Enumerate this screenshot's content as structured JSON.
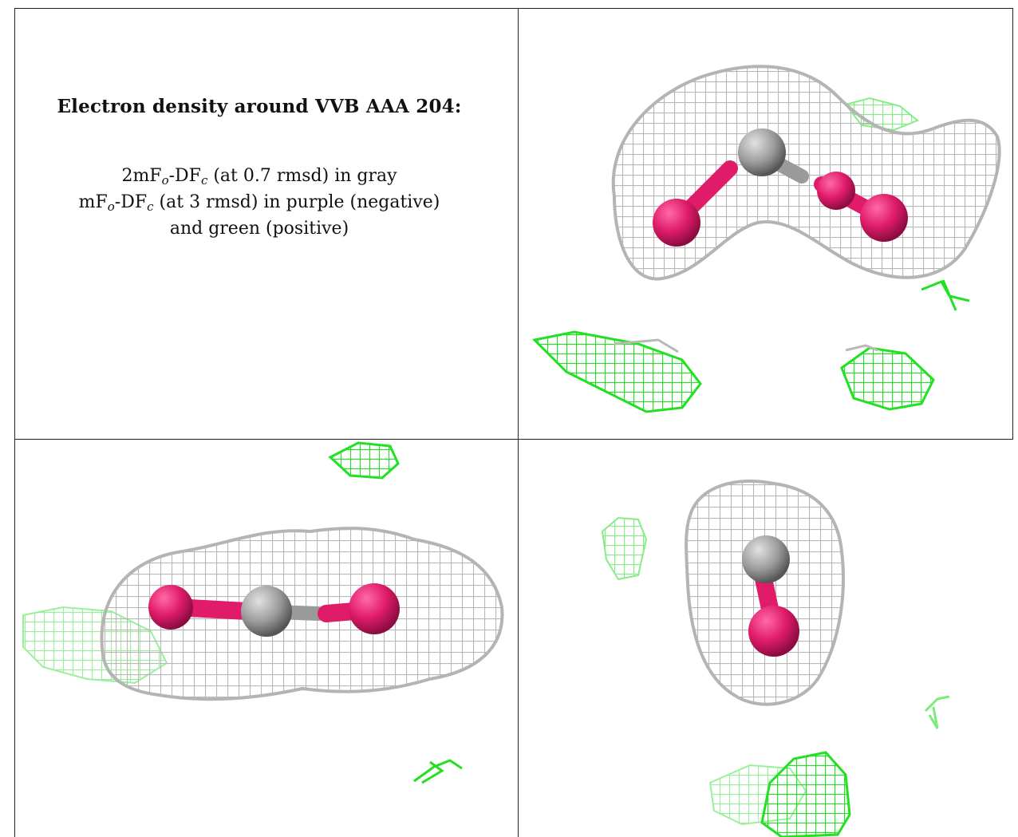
{
  "caption": {
    "title": "Electron density around VVB AAA 204:",
    "line1_pre": "2mF",
    "line1_sub1": "o",
    "line1_mid": "-DF",
    "line1_sub2": "c",
    "line1_post": " (at 0.7 rmsd) in gray",
    "line2_pre": "mF",
    "line2_sub1": "o",
    "line2_mid": "-DF",
    "line2_sub2": "c",
    "line2_post": " (at 3 rmsd) in purple (negative)",
    "line3": "and green (positive)"
  },
  "colors": {
    "map_2fofc": "#b4b4b4",
    "map_fofc_negative": "#e01c6a",
    "map_fofc_positive": "#22e022",
    "atom_carbon": "#8f8f8f",
    "border": "#222222"
  }
}
